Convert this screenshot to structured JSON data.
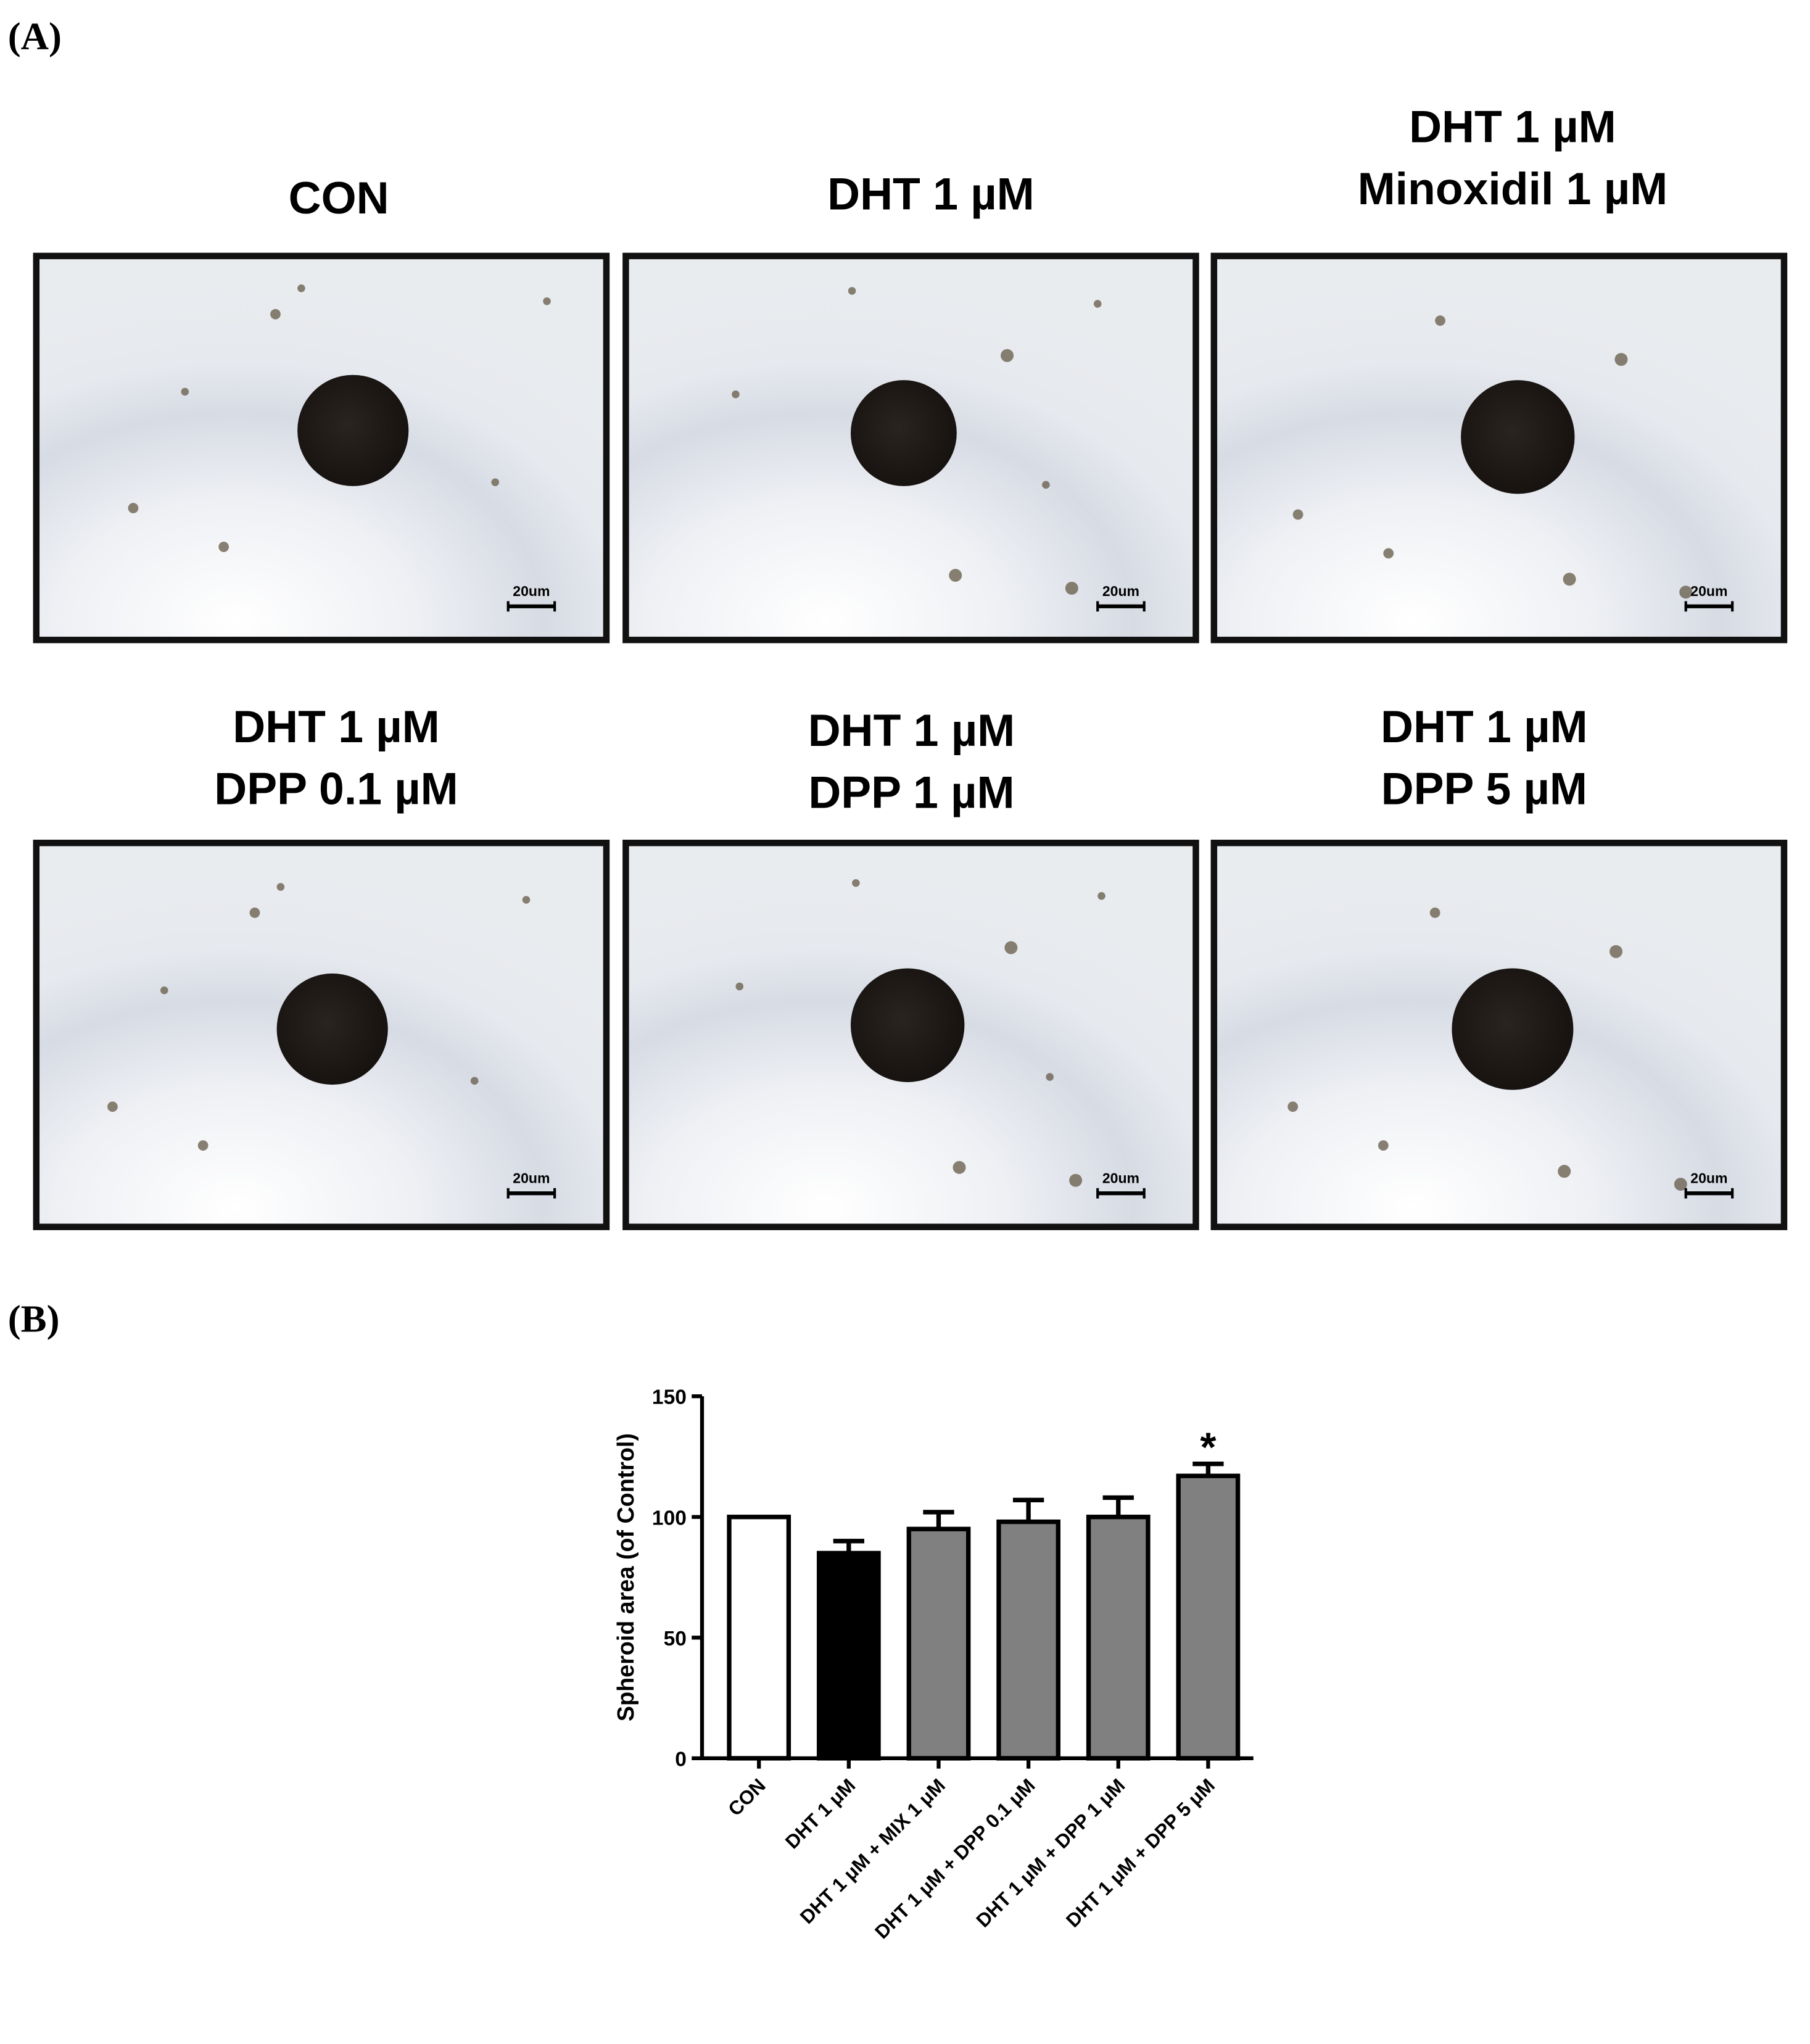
{
  "panel_a": {
    "label": "(A)",
    "images": [
      {
        "title_lines": [
          "CON"
        ],
        "scale_label": "20um"
      },
      {
        "title_lines": [
          "DHT 1 µM"
        ],
        "scale_label": "20um"
      },
      {
        "title_lines": [
          "DHT 1 µM",
          "Minoxidil 1 µM"
        ],
        "scale_label": "20um"
      },
      {
        "title_lines": [
          "DHT 1 µM",
          "DPP 0.1 µM"
        ],
        "scale_label": "20um"
      },
      {
        "title_lines": [
          "DHT 1 µM",
          "DPP 1 µM"
        ],
        "scale_label": "20um"
      },
      {
        "title_lines": [
          "DHT 1 µM",
          "DPP 5 µM"
        ],
        "scale_label": "20um"
      }
    ]
  },
  "panel_b": {
    "label": "(B)"
  },
  "chart_data": {
    "type": "bar",
    "y_label": "Spheroid area (of Control)",
    "categories": [
      "CON",
      "DHT 1 μM",
      "DHT 1 μM + MIX 1 μM",
      "DHT 1 μM + DPP 0.1 μM",
      "DHT 1 μM + DPP 1 μM",
      "DHT 1 μM + DPP 5 μM"
    ],
    "values": [
      100,
      85,
      95,
      98,
      100,
      117
    ],
    "errors": [
      null,
      5,
      7,
      9,
      8,
      5
    ],
    "colors": [
      "#ffffff",
      "#000000",
      "#808080",
      "#808080",
      "#808080",
      "#808080"
    ],
    "significance": [
      null,
      null,
      null,
      null,
      null,
      "*"
    ],
    "ylim": [
      0,
      150
    ],
    "yticks": [
      0,
      50,
      100,
      150
    ]
  }
}
